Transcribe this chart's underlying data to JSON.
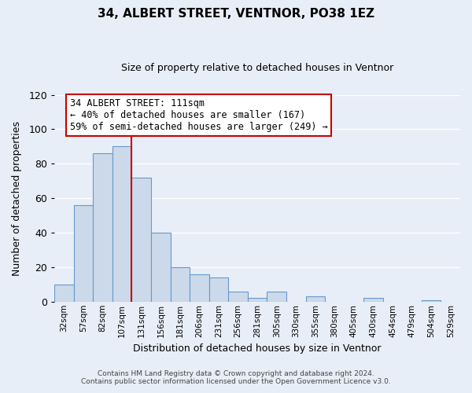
{
  "title": "34, ALBERT STREET, VENTNOR, PO38 1EZ",
  "subtitle": "Size of property relative to detached houses in Ventnor",
  "xlabel": "Distribution of detached houses by size in Ventnor",
  "ylabel": "Number of detached properties",
  "bar_labels": [
    "32sqm",
    "57sqm",
    "82sqm",
    "107sqm",
    "131sqm",
    "156sqm",
    "181sqm",
    "206sqm",
    "231sqm",
    "256sqm",
    "281sqm",
    "305sqm",
    "330sqm",
    "355sqm",
    "380sqm",
    "405sqm",
    "430sqm",
    "454sqm",
    "479sqm",
    "504sqm",
    "529sqm"
  ],
  "bar_values": [
    10,
    56,
    86,
    90,
    72,
    40,
    20,
    16,
    14,
    6,
    2,
    6,
    0,
    3,
    0,
    0,
    2,
    0,
    0,
    1,
    0
  ],
  "bar_color": "#ccd9ea",
  "bar_edge_color": "#6699cc",
  "ylim": [
    0,
    120
  ],
  "yticks": [
    0,
    20,
    40,
    60,
    80,
    100,
    120
  ],
  "vline_color": "#cc0000",
  "annotation_title": "34 ALBERT STREET: 111sqm",
  "annotation_line1": "← 40% of detached houses are smaller (167)",
  "annotation_line2": "59% of semi-detached houses are larger (249) →",
  "annotation_box_color": "#ffffff",
  "annotation_box_edge": "#cc0000",
  "footer1": "Contains HM Land Registry data © Crown copyright and database right 2024.",
  "footer2": "Contains public sector information licensed under the Open Government Licence v3.0.",
  "bg_color": "#e8eef7",
  "plot_bg_color": "#e8eef7",
  "grid_color": "#ffffff"
}
